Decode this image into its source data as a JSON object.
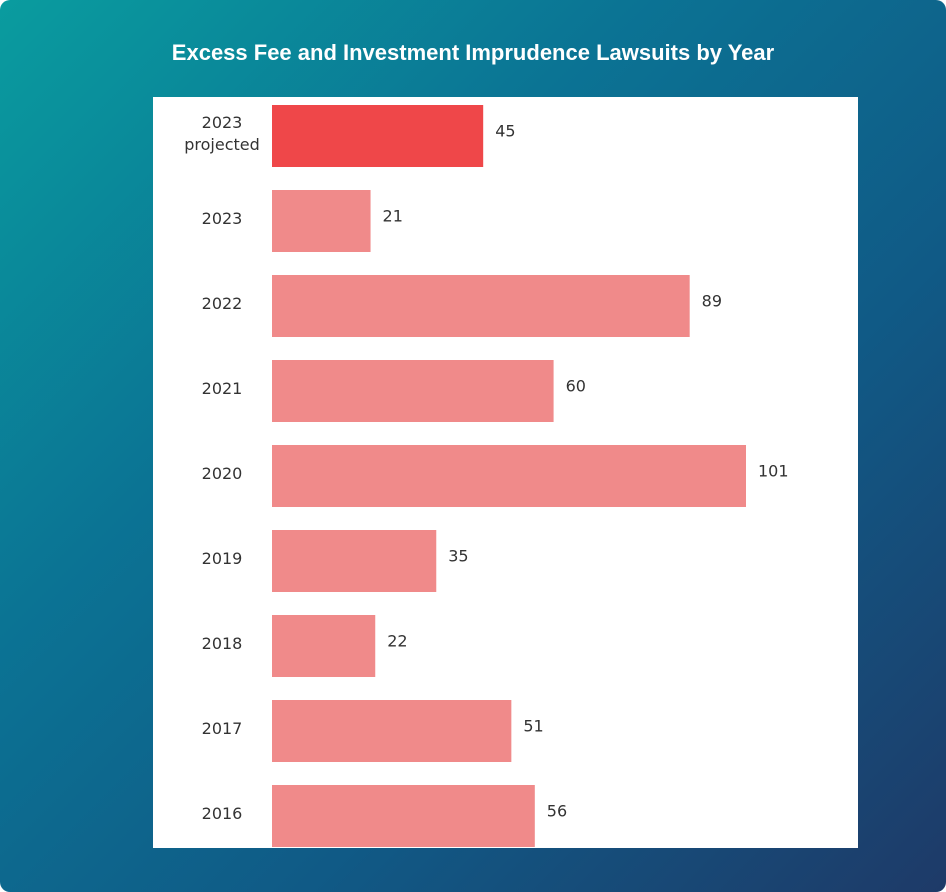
{
  "chart_data": {
    "type": "bar",
    "orientation": "horizontal",
    "title": "Excess Fee and Investment Imprudence Lawsuits by Year",
    "categories": [
      "2023 projected",
      "2023",
      "2022",
      "2021",
      "2020",
      "2019",
      "2018",
      "2017",
      "2016"
    ],
    "values": [
      45,
      21,
      89,
      60,
      101,
      35,
      22,
      51,
      56
    ],
    "colors": [
      "#ef4749",
      "#f08a8a",
      "#f08a8a",
      "#f08a8a",
      "#f08a8a",
      "#f08a8a",
      "#f08a8a",
      "#f08a8a",
      "#f08a8a"
    ]
  }
}
